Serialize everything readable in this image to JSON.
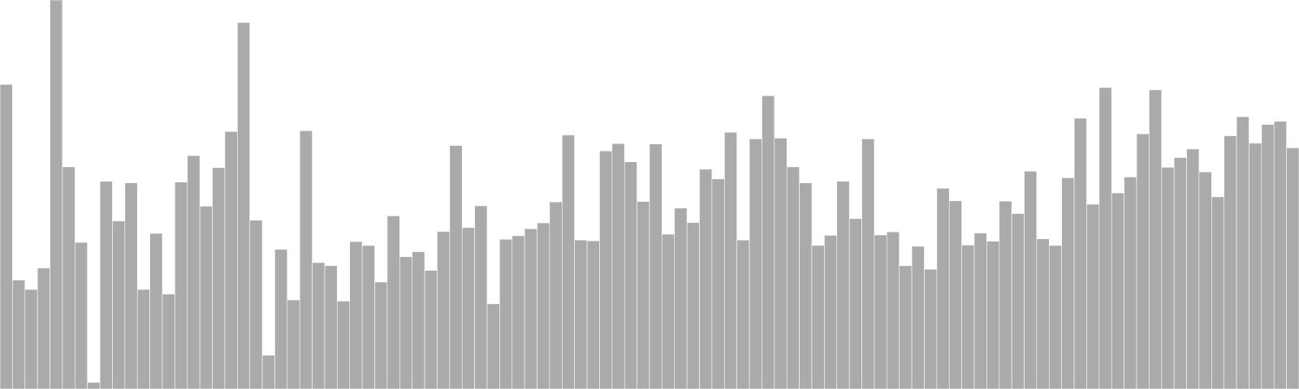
{
  "colors": {
    "bar": "#aaaaaa",
    "bar_outline": "#ffffff",
    "background": "#ffffff"
  },
  "chart_data": {
    "type": "bar",
    "title": "",
    "xlabel": "",
    "ylabel": "",
    "ylim": [
      0,
      100
    ],
    "grid": false,
    "legend": "none",
    "axes_visible": false,
    "values": [
      78.3,
      28.0,
      25.6,
      31.1,
      100.0,
      57.1,
      37.7,
      1.7,
      53.4,
      43.2,
      53.0,
      25.6,
      40.0,
      24.4,
      53.2,
      60.0,
      47.0,
      56.9,
      66.2,
      94.2,
      43.4,
      8.7,
      35.9,
      22.9,
      66.4,
      32.5,
      31.7,
      22.6,
      37.9,
      36.9,
      27.5,
      44.5,
      34.0,
      35.3,
      30.5,
      40.5,
      62.6,
      41.5,
      47.1,
      21.9,
      38.5,
      39.4,
      41.2,
      42.7,
      48.1,
      65.3,
      38.3,
      38.1,
      61.2,
      63.1,
      58.4,
      48.2,
      63.0,
      39.8,
      46.5,
      42.8,
      56.5,
      54.0,
      66.0,
      38.3,
      64.3,
      75.4,
      64.5,
      57.1,
      53.0,
      36.9,
      39.5,
      53.4,
      43.8,
      64.3,
      39.6,
      40.4,
      31.7,
      36.7,
      30.8,
      51.6,
      48.4,
      37.0,
      40.1,
      38.0,
      48.3,
      45.1,
      56.0,
      38.6,
      36.9,
      54.3,
      69.6,
      47.5,
      77.5,
      50.4,
      54.5,
      65.6,
      76.9,
      57.0,
      59.5,
      61.7,
      55.8,
      49.4,
      65.1,
      70.0,
      63.2,
      68.0,
      68.8,
      62.0
    ]
  }
}
